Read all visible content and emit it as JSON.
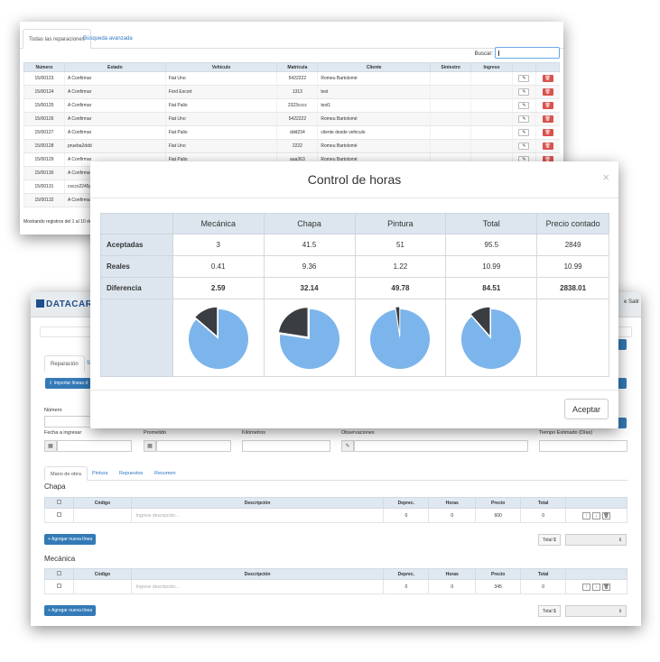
{
  "list": {
    "tabs": [
      "Todas las reparaciones",
      "Búsqueda avanzada"
    ],
    "search_label": "Buscar:",
    "columns": [
      "Número",
      "Estado",
      "Vehículo",
      "Matrícula",
      "Cliente",
      "Siniestro",
      "Ingreso",
      "",
      ""
    ],
    "rows": [
      {
        "numero": "15/00123",
        "estado": "A Confirmar",
        "vehiculo": "Fiat Uno",
        "matricula": "5422222",
        "cliente": "Romeu Bartolomé"
      },
      {
        "numero": "15/00124",
        "estado": "A Confirmar",
        "vehiculo": "Ford Escort",
        "matricula": "1313",
        "cliente": "test"
      },
      {
        "numero": "15/00125",
        "estado": "A Confirmar",
        "vehiculo": "Fiat Palio",
        "matricula": "2323cccc",
        "cliente": "test1"
      },
      {
        "numero": "15/00126",
        "estado": "A Confirmar",
        "vehiculo": "Fiat Uno",
        "matricula": "5422222",
        "cliente": "Romeu Bartolomé"
      },
      {
        "numero": "15/00127",
        "estado": "A Confirmar",
        "vehiculo": "Fiat Palio",
        "matricula": "ddd234",
        "cliente": "cliente desde vehiculo"
      },
      {
        "numero": "15/00128",
        "estado": "prueba2ddd",
        "vehiculo": "Fiat Uno",
        "matricula": "2222",
        "cliente": "Romeu Bartolomé"
      },
      {
        "numero": "15/00129",
        "estado": "A Confirmar",
        "vehiculo": "Fiat Palio",
        "matricula": "aaa363",
        "cliente": "Romeu Bartolomé"
      },
      {
        "numero": "15/00130",
        "estado": "A Confirmar",
        "vehiculo": "",
        "matricula": "",
        "cliente": ""
      },
      {
        "numero": "15/00131",
        "estado": "cxccx2245p",
        "vehiculo": "",
        "matricula": "",
        "cliente": ""
      },
      {
        "numero": "15/00132",
        "estado": "A Confirmar",
        "vehiculo": "",
        "matricula": "",
        "cliente": ""
      }
    ],
    "footer": "Mostrando registros del 1 al 10 de"
  },
  "form": {
    "brand": "DATACAR",
    "nav_right": "e Salir",
    "tabs": [
      "Reparación",
      "S"
    ],
    "import_btn": "Importar líneas d",
    "labels": {
      "numero": "Número",
      "fecha": "Fecha a ingresar",
      "prometido": "Prometido",
      "kilometros": "Kilómetros",
      "observaciones": "Observaciones",
      "tiempo": "Tiempo Estimado (Días)"
    },
    "subtabs": [
      "Mano de obra",
      "Pintura",
      "Repuestos",
      "Resumen"
    ],
    "line_columns": [
      "",
      "Código",
      "Descripción",
      "Deprec.",
      "Horas",
      "Precio",
      "Total",
      ""
    ],
    "sections": [
      {
        "title": "Chapa",
        "placeholder": "Ingrese descripción...",
        "deprec": "0",
        "horas": "0",
        "precio": "600",
        "total": "0"
      },
      {
        "title": "Mecánica",
        "placeholder": "Ingrese descripción...",
        "deprec": "0",
        "horas": "0",
        "precio": "345",
        "total": "0"
      }
    ],
    "add_line": "Agregar nueva línea",
    "total_label": "Total $"
  },
  "modal": {
    "title": "Control de horas",
    "close": "×",
    "columns": [
      "",
      "Mecánica",
      "Chapa",
      "Pintura",
      "Total",
      "Precio contado"
    ],
    "rows": [
      {
        "label": "Aceptadas",
        "values": [
          "3",
          "41.5",
          "51",
          "95.5",
          "2849"
        ]
      },
      {
        "label": "Reales",
        "values": [
          "0.41",
          "9.36",
          "1.22",
          "10.99",
          "10.99"
        ]
      },
      {
        "label": "Diferencia",
        "values": [
          "2.59",
          "32.14",
          "49.78",
          "84.51",
          "2838.01"
        ]
      }
    ],
    "accept": "Aceptar",
    "colors": {
      "used": "#3a3d42",
      "remaining": "#7cb5ec"
    }
  }
}
